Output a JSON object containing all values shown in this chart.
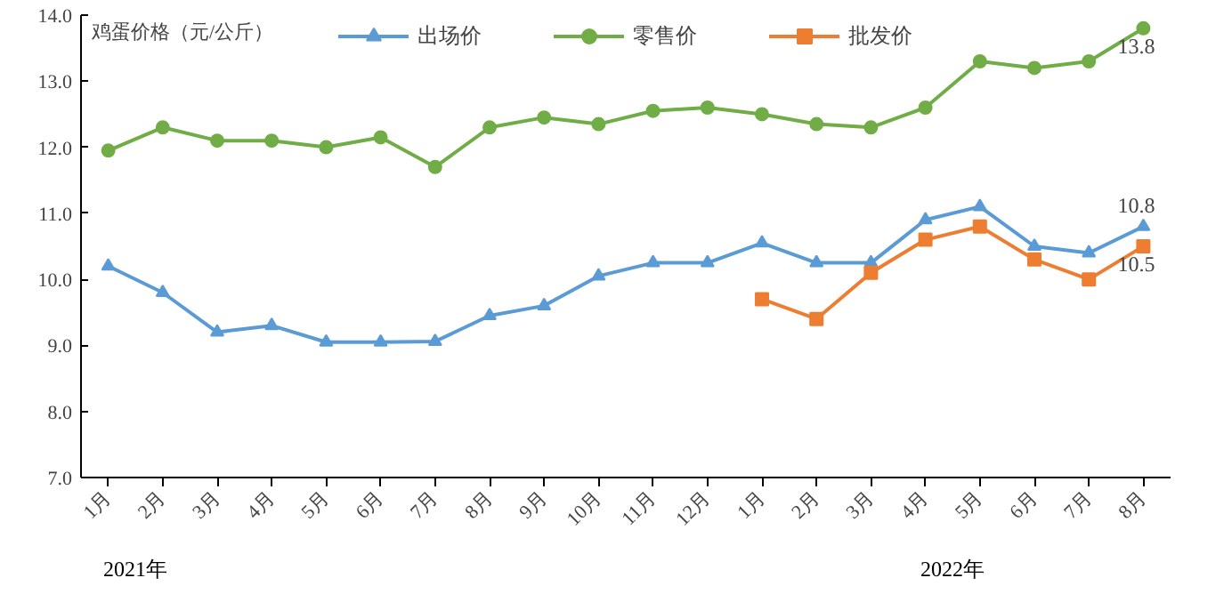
{
  "chart_data": {
    "type": "line",
    "ylabel": "鸡蛋价格（元/公斤）",
    "categories": [
      "1月",
      "2月",
      "3月",
      "4月",
      "5月",
      "6月",
      "7月",
      "8月",
      "9月",
      "10月",
      "11月",
      "12月",
      "1月",
      "2月",
      "3月",
      "4月",
      "5月",
      "6月",
      "7月",
      "8月"
    ],
    "series": [
      {
        "name": "出场价",
        "color": "#5b9bd5",
        "marker": "triangle",
        "values": [
          10.2,
          9.8,
          9.2,
          9.3,
          9.05,
          9.05,
          9.06,
          9.45,
          9.6,
          10.05,
          10.25,
          10.25,
          10.55,
          10.25,
          10.25,
          10.9,
          11.1,
          10.5,
          10.4,
          10.8
        ],
        "value_labels": [
          null,
          null,
          null,
          null,
          null,
          null,
          null,
          null,
          null,
          null,
          null,
          null,
          null,
          null,
          null,
          null,
          null,
          null,
          null,
          "10.8"
        ]
      },
      {
        "name": "零售价",
        "color": "#70ad47",
        "marker": "circle",
        "values": [
          11.95,
          12.3,
          12.1,
          12.1,
          12.0,
          12.15,
          11.7,
          12.3,
          12.45,
          12.35,
          12.55,
          12.6,
          12.5,
          12.35,
          12.3,
          12.6,
          13.3,
          13.2,
          13.3,
          13.8
        ],
        "value_labels": [
          null,
          null,
          null,
          null,
          null,
          null,
          null,
          null,
          null,
          null,
          null,
          null,
          null,
          null,
          null,
          null,
          null,
          null,
          null,
          "13.8"
        ]
      },
      {
        "name": "批发价",
        "color": "#ed7d31",
        "marker": "square",
        "values": [
          null,
          null,
          null,
          null,
          null,
          null,
          null,
          null,
          null,
          null,
          null,
          null,
          9.7,
          9.4,
          10.1,
          10.6,
          10.8,
          10.3,
          10.0,
          10.5
        ],
        "value_labels": [
          null,
          null,
          null,
          null,
          null,
          null,
          null,
          null,
          null,
          null,
          null,
          null,
          null,
          null,
          null,
          null,
          null,
          null,
          null,
          "10.5"
        ]
      }
    ],
    "ylim": [
      7,
      14
    ],
    "yticks": [
      {
        "value": 7,
        "label": "7.0"
      },
      {
        "value": 8,
        "label": "8.0"
      },
      {
        "value": 9,
        "label": "9.0"
      },
      {
        "value": 10,
        "label": "10.0"
      },
      {
        "value": 11,
        "label": "11.0"
      },
      {
        "value": 12,
        "label": "12.0"
      },
      {
        "value": 13,
        "label": "13.0"
      },
      {
        "value": 14,
        "label": "14.0"
      }
    ],
    "annotations": [
      "2021年",
      "2022年"
    ],
    "legend": "top",
    "grid": false
  }
}
